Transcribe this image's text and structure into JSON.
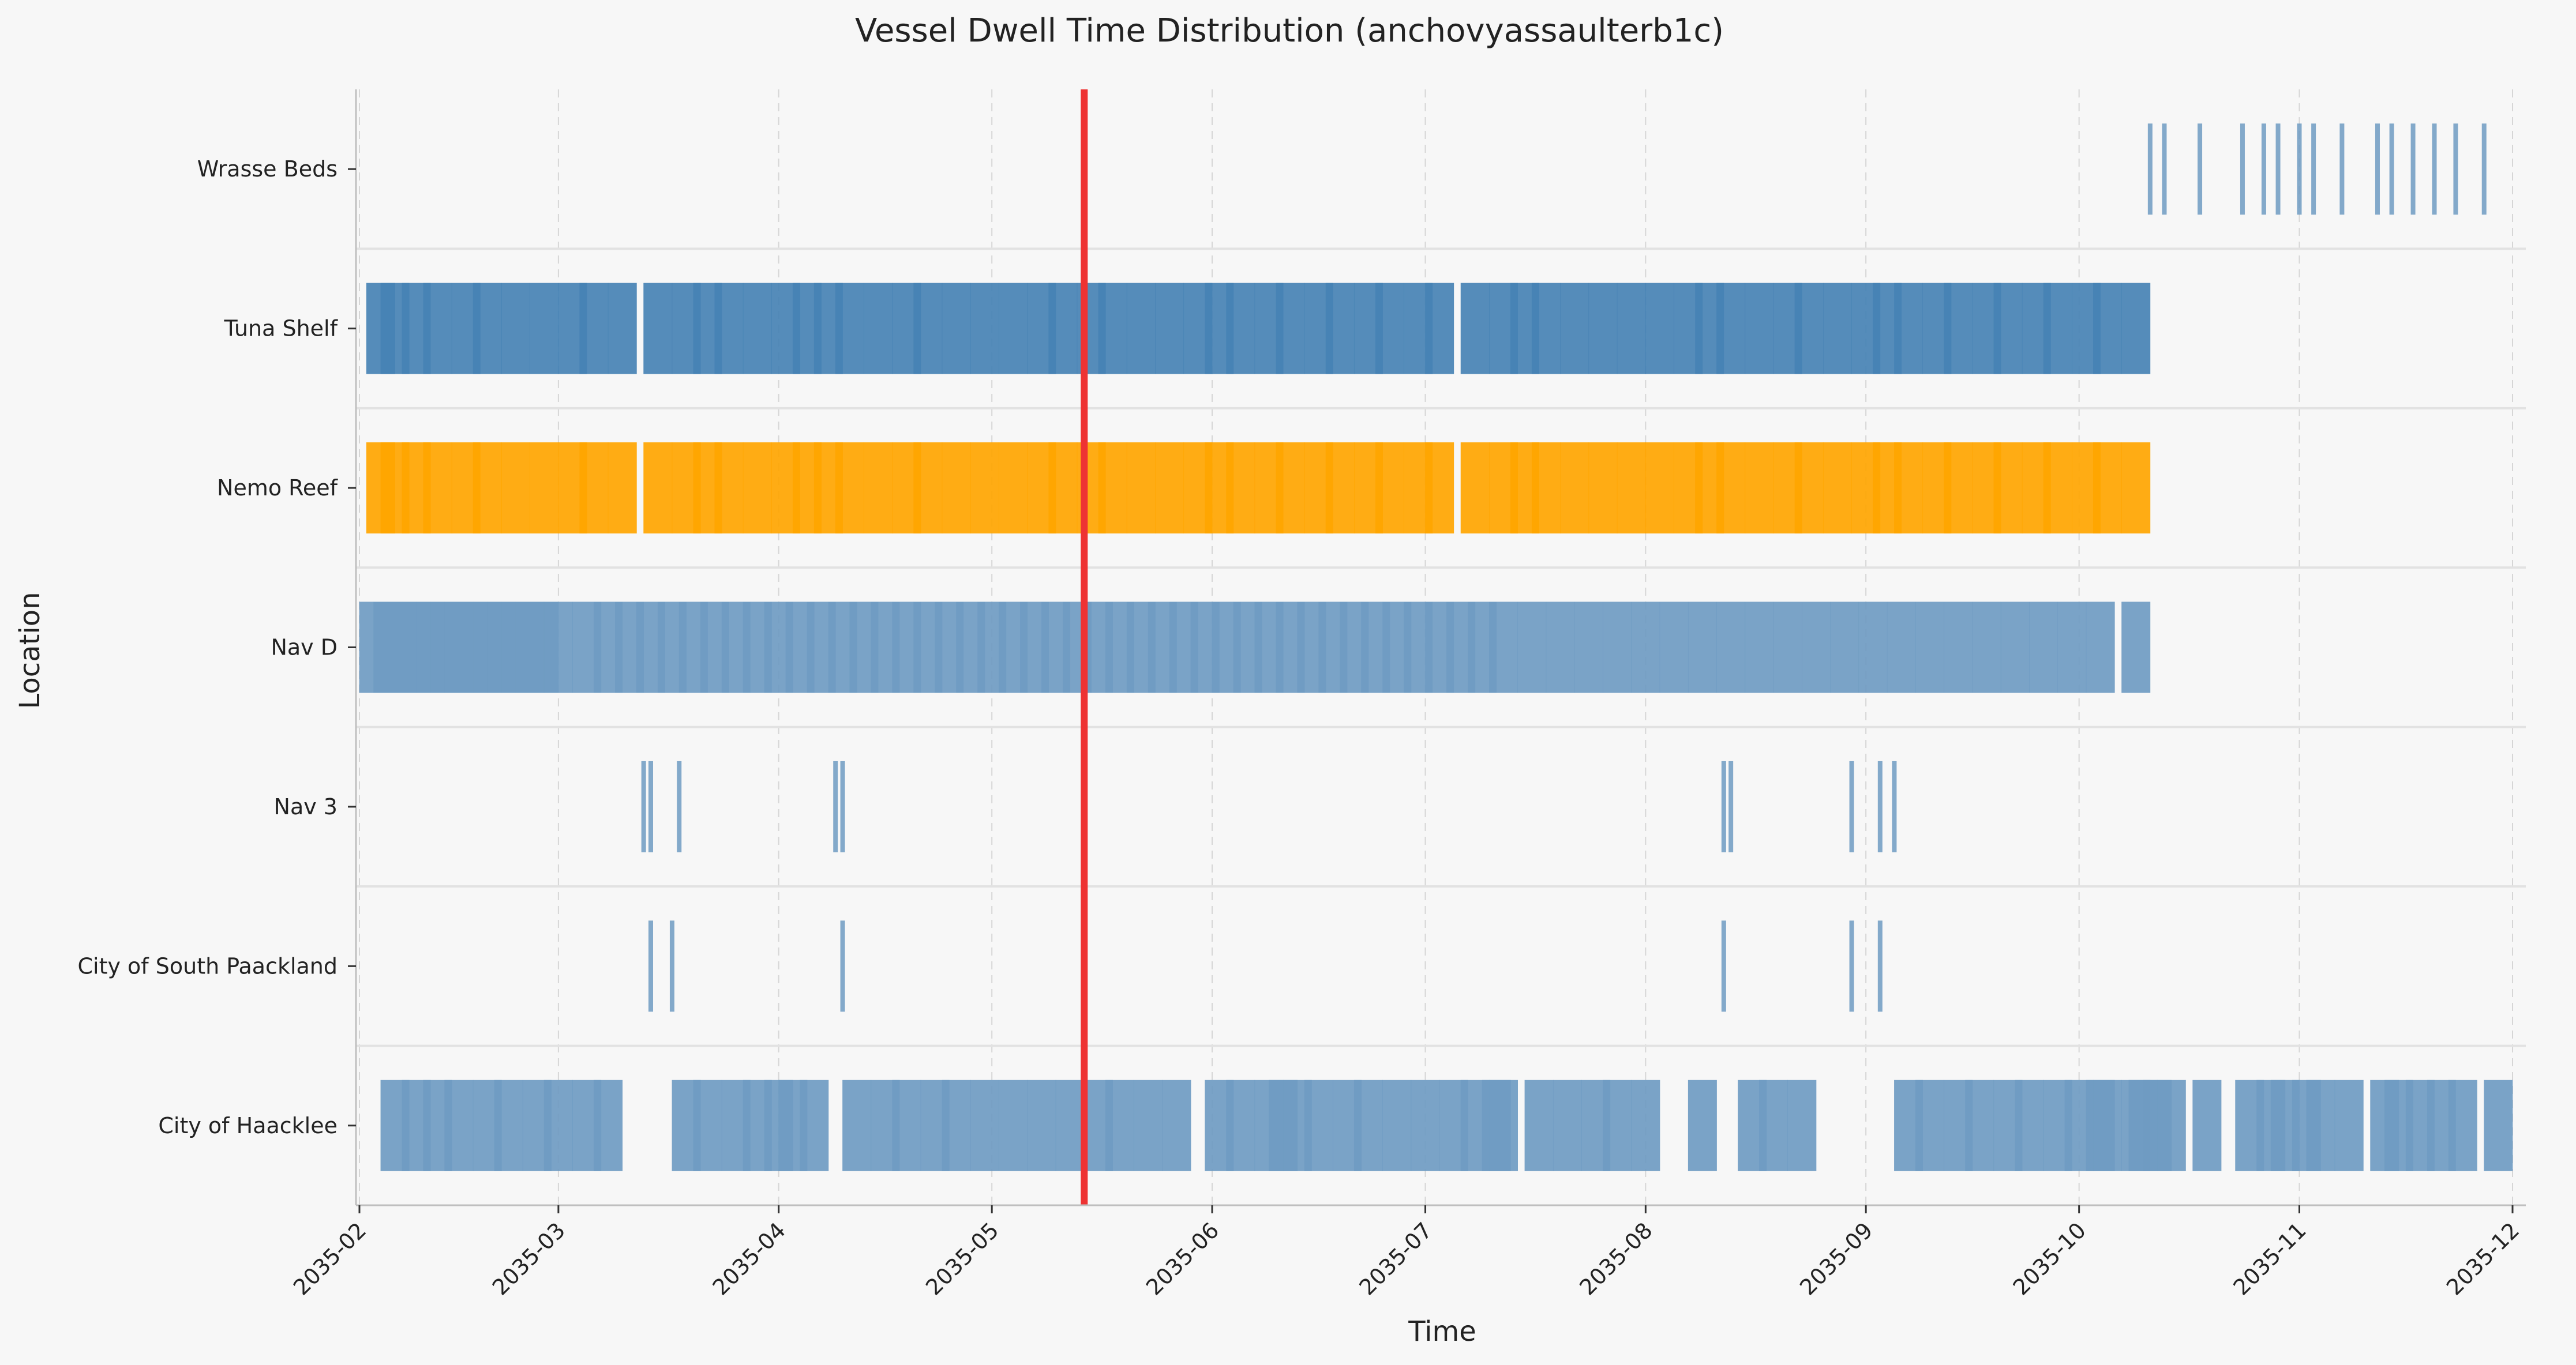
{
  "chart_data": {
    "type": "timeline",
    "title": "Vessel Dwell Time Distribution (anchovyassaulterb1c)",
    "xlabel": "Time",
    "ylabel": "Location",
    "x_range": [
      "2035-02-01",
      "2035-12-01"
    ],
    "x_ticks": [
      "2035-02",
      "2035-03",
      "2035-04",
      "2035-05",
      "2035-06",
      "2035-07",
      "2035-08",
      "2035-09",
      "2035-10",
      "2035-11",
      "2035-12"
    ],
    "categories": [
      "Wrasse Beds",
      "Tuna Shelf",
      "Nemo Reef",
      "Nav D",
      "Nav 3",
      "City of South Paackland",
      "City of Haacklee"
    ],
    "marker_date": "2035-05-14",
    "marker_color": "#ee3333",
    "grid": true,
    "colors": {
      "default": "#6f9bc2",
      "tuna": "#4682b4",
      "nemo": "#ffa500",
      "background": "#f7f7f7"
    },
    "series": [
      {
        "location": "Wrasse Beds",
        "color": "#6f9bc2",
        "dates": [
          "2035-10-11",
          "2035-10-13",
          "2035-10-18",
          "2035-10-24",
          "2035-10-27",
          "2035-10-29",
          "2035-11-01",
          "2035-11-03",
          "2035-11-07",
          "2035-11-12",
          "2035-11-14",
          "2035-11-17",
          "2035-11-20",
          "2035-11-23",
          "2035-11-27"
        ]
      },
      {
        "location": "Tuna Shelf",
        "color": "#4682b4",
        "dates": [
          "2035-02-04",
          "2035-02-06",
          "2035-02-09",
          "2035-02-12",
          "2035-02-16",
          "2035-02-19",
          "2035-02-23",
          "2035-02-27",
          "2035-03-03",
          "2035-03-06",
          "2035-03-10",
          "2035-03-15",
          "2035-03-19",
          "2035-03-22",
          "2035-03-25",
          "2035-03-29",
          "2035-04-02",
          "2035-04-05",
          "2035-04-08",
          "2035-04-11",
          "2035-04-15",
          "2035-04-19",
          "2035-04-22",
          "2035-04-26",
          "2035-04-30",
          "2035-05-04",
          "2035-05-08",
          "2035-05-11",
          "2035-05-15",
          "2035-05-18",
          "2035-05-22",
          "2035-05-26",
          "2035-05-30",
          "2035-06-02",
          "2035-06-05",
          "2035-06-09",
          "2035-06-12",
          "2035-06-16",
          "2035-06-19",
          "2035-06-23",
          "2035-06-26",
          "2035-06-30",
          "2035-07-03",
          "2035-07-08",
          "2035-07-12",
          "2035-07-15",
          "2035-07-18",
          "2035-07-22",
          "2035-07-26",
          "2035-07-30",
          "2035-08-03",
          "2035-08-07",
          "2035-08-10",
          "2035-08-13",
          "2035-08-17",
          "2035-08-21",
          "2035-08-24",
          "2035-08-28",
          "2035-09-01",
          "2035-09-04",
          "2035-09-07",
          "2035-09-11",
          "2035-09-14",
          "2035-09-18",
          "2035-09-21",
          "2035-09-25",
          "2035-09-28",
          "2035-10-02",
          "2035-10-05",
          "2035-10-09"
        ]
      },
      {
        "location": "Nemo Reef",
        "color": "#ffa500",
        "dates": [
          "2035-02-04",
          "2035-02-06",
          "2035-02-09",
          "2035-02-12",
          "2035-02-16",
          "2035-02-19",
          "2035-02-23",
          "2035-02-27",
          "2035-03-03",
          "2035-03-06",
          "2035-03-10",
          "2035-03-15",
          "2035-03-19",
          "2035-03-22",
          "2035-03-25",
          "2035-03-29",
          "2035-04-02",
          "2035-04-05",
          "2035-04-08",
          "2035-04-11",
          "2035-04-15",
          "2035-04-19",
          "2035-04-22",
          "2035-04-26",
          "2035-04-30",
          "2035-05-04",
          "2035-05-08",
          "2035-05-11",
          "2035-05-15",
          "2035-05-18",
          "2035-05-22",
          "2035-05-26",
          "2035-05-30",
          "2035-06-02",
          "2035-06-05",
          "2035-06-09",
          "2035-06-12",
          "2035-06-16",
          "2035-06-19",
          "2035-06-23",
          "2035-06-26",
          "2035-06-30",
          "2035-07-03",
          "2035-07-08",
          "2035-07-12",
          "2035-07-15",
          "2035-07-18",
          "2035-07-22",
          "2035-07-26",
          "2035-07-30",
          "2035-08-03",
          "2035-08-07",
          "2035-08-10",
          "2035-08-13",
          "2035-08-17",
          "2035-08-21",
          "2035-08-24",
          "2035-08-28",
          "2035-09-01",
          "2035-09-04",
          "2035-09-07",
          "2035-09-11",
          "2035-09-14",
          "2035-09-18",
          "2035-09-21",
          "2035-09-25",
          "2035-09-28",
          "2035-10-02",
          "2035-10-05",
          "2035-10-09"
        ]
      },
      {
        "location": "Nav D",
        "color": "#6f9bc2",
        "dates": [
          "2035-02-03",
          "2035-02-05",
          "2035-02-07",
          "2035-02-09",
          "2035-02-11",
          "2035-02-13",
          "2035-02-15",
          "2035-02-17",
          "2035-02-19",
          "2035-02-21",
          "2035-02-23",
          "2035-02-25",
          "2035-02-27",
          "2035-03-01",
          "2035-03-05",
          "2035-03-08",
          "2035-03-11",
          "2035-03-14",
          "2035-03-17",
          "2035-03-20",
          "2035-03-23",
          "2035-03-26",
          "2035-03-29",
          "2035-04-01",
          "2035-04-04",
          "2035-04-07",
          "2035-04-10",
          "2035-04-13",
          "2035-04-16",
          "2035-04-19",
          "2035-04-22",
          "2035-04-25",
          "2035-04-28",
          "2035-05-01",
          "2035-05-04",
          "2035-05-07",
          "2035-05-10",
          "2035-05-13",
          "2035-05-16",
          "2035-05-19",
          "2035-05-22",
          "2035-05-25",
          "2035-05-28",
          "2035-05-31",
          "2035-06-03",
          "2035-06-06",
          "2035-06-09",
          "2035-06-12",
          "2035-06-15",
          "2035-06-18",
          "2035-06-21",
          "2035-06-24",
          "2035-06-27",
          "2035-06-30",
          "2035-07-03",
          "2035-07-06",
          "2035-07-09",
          "2035-07-12",
          "2035-07-16",
          "2035-07-20",
          "2035-07-24",
          "2035-07-28",
          "2035-08-01",
          "2035-08-05",
          "2035-08-09",
          "2035-08-13",
          "2035-08-17",
          "2035-08-21",
          "2035-08-25",
          "2035-08-29",
          "2035-09-02",
          "2035-09-06",
          "2035-09-10",
          "2035-09-14",
          "2035-09-18",
          "2035-09-22",
          "2035-09-26",
          "2035-09-30",
          "2035-10-04",
          "2035-10-09"
        ]
      },
      {
        "location": "Nav 3",
        "color": "#6f9bc2",
        "dates": [
          "2035-03-13",
          "2035-03-14",
          "2035-03-18",
          "2035-04-09",
          "2035-04-10",
          "2035-08-12",
          "2035-08-13",
          "2035-08-30",
          "2035-09-03",
          "2035-09-05"
        ]
      },
      {
        "location": "City of South Paackland",
        "color": "#6f9bc2",
        "dates": [
          "2035-03-14",
          "2035-03-17",
          "2035-04-10",
          "2035-08-12",
          "2035-08-30",
          "2035-09-03"
        ]
      },
      {
        "location": "City of Haacklee",
        "color": "#6f9bc2",
        "dates": [
          "2035-02-06",
          "2035-02-09",
          "2035-02-12",
          "2035-02-15",
          "2035-02-19",
          "2035-02-22",
          "2035-02-26",
          "2035-03-01",
          "2035-03-05",
          "2035-03-08",
          "2035-03-19",
          "2035-03-22",
          "2035-03-26",
          "2035-03-29",
          "2035-04-01",
          "2035-04-03",
          "2035-04-06",
          "2035-04-12",
          "2035-04-16",
          "2035-04-19",
          "2035-04-23",
          "2035-04-26",
          "2035-04-30",
          "2035-05-04",
          "2035-05-08",
          "2035-05-12",
          "2035-05-16",
          "2035-05-19",
          "2035-05-23",
          "2035-05-27",
          "2035-06-02",
          "2035-06-05",
          "2035-06-09",
          "2035-06-11",
          "2035-06-13",
          "2035-06-16",
          "2035-06-20",
          "2035-06-23",
          "2035-06-27",
          "2035-07-01",
          "2035-07-05",
          "2035-07-08",
          "2035-07-11",
          "2035-07-12",
          "2035-07-17",
          "2035-07-21",
          "2035-07-25",
          "2035-07-28",
          "2035-08-01",
          "2035-08-09",
          "2035-08-16",
          "2035-08-19",
          "2035-08-23",
          "2035-09-07",
          "2035-09-10",
          "2035-09-14",
          "2035-09-17",
          "2035-09-21",
          "2035-09-24",
          "2035-09-28",
          "2035-10-01",
          "2035-10-04",
          "2035-10-05",
          "2035-10-09",
          "2035-10-10",
          "2035-10-12",
          "2035-10-14",
          "2035-10-19",
          "2035-10-25",
          "2035-10-28",
          "2035-10-30",
          "2035-11-02",
          "2035-11-04",
          "2035-11-08",
          "2035-11-13",
          "2035-11-15",
          "2035-11-18",
          "2035-11-21",
          "2035-11-24",
          "2035-11-29"
        ]
      }
    ]
  }
}
